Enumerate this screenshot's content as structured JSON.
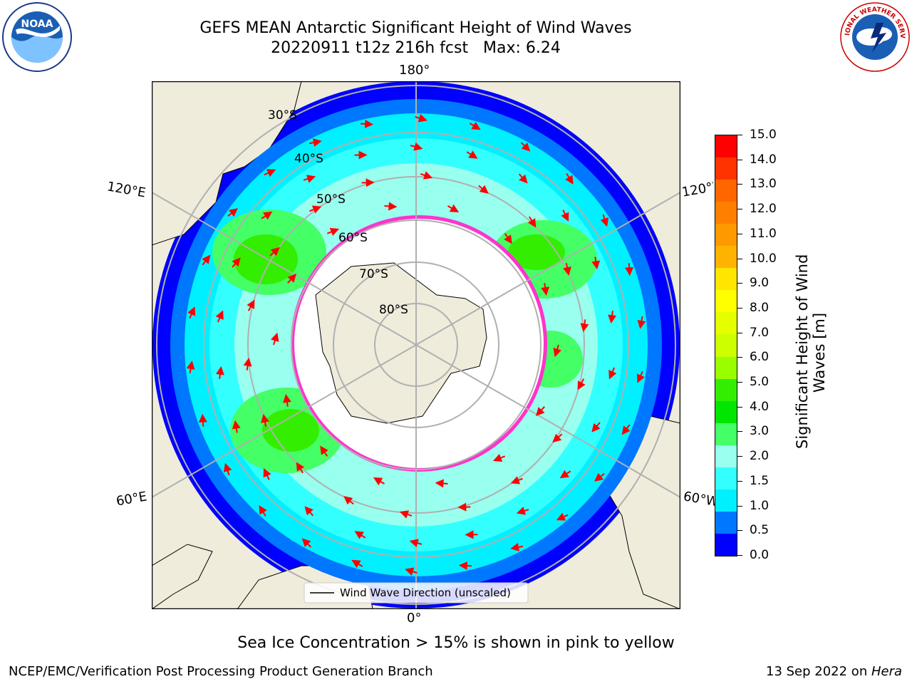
{
  "header": {
    "title_line1": "GEFS MEAN Antarctic Significant Height of Wind Waves",
    "title_line2": "20220911 t12z 216h fcst   Max: 6.24"
  },
  "logos": {
    "noaa": {
      "name": "noaa-logo",
      "text": "NOAA"
    },
    "nws": {
      "name": "national-weather-service-logo",
      "text": "NATIONAL WEATHER SERVICE"
    }
  },
  "map": {
    "projection": "south-polar-stereographic",
    "longitude_labels": {
      "top": "180°",
      "bottom": "0°",
      "upper_left": "120°E",
      "lower_left": "60°E",
      "upper_right": "120°W",
      "lower_right": "60°W"
    },
    "latitude_labels": [
      "30°S",
      "40°S",
      "50°S",
      "60°S",
      "70°S",
      "80°S"
    ],
    "legend_label": "Wind Wave Direction (unscaled)",
    "vector_color": "#ff0000",
    "land_color": "#efecdc",
    "sea_ice_colors": [
      "#ff33cc",
      "#ff66ff",
      "#ffcc33",
      "#ffff66"
    ]
  },
  "colorbar": {
    "label": "Significant Height of Wind\nWaves [m]",
    "label_line1": "Significant Height of Wind",
    "label_line2": "Waves [m]",
    "ticks": [
      "15.0",
      "14.0",
      "13.0",
      "12.0",
      "11.0",
      "10.0",
      "9.0",
      "8.0",
      "7.0",
      "6.0",
      "5.0",
      "4.0",
      "3.0",
      "2.0",
      "1.5",
      "1.0",
      "0.5",
      "0.0"
    ],
    "colors_top_to_bottom": [
      "#ff0000",
      "#ff3300",
      "#ff6600",
      "#ff8000",
      "#ff9900",
      "#ffb300",
      "#ffe600",
      "#ffff00",
      "#e6ff00",
      "#ccff00",
      "#99ff00",
      "#33ee00",
      "#00e600",
      "#44ff66",
      "#99ffee",
      "#33ffff",
      "#00f0ff",
      "#0077ff",
      "#0000ff"
    ]
  },
  "footer": {
    "note": "Sea Ice Concentration > 15% is shown in pink to yellow",
    "credit_left": "NCEP/EMC/Verification Post Processing Product Generation Branch",
    "credit_right_date": "13 Sep 2022 on ",
    "credit_right_host": "Hera"
  }
}
